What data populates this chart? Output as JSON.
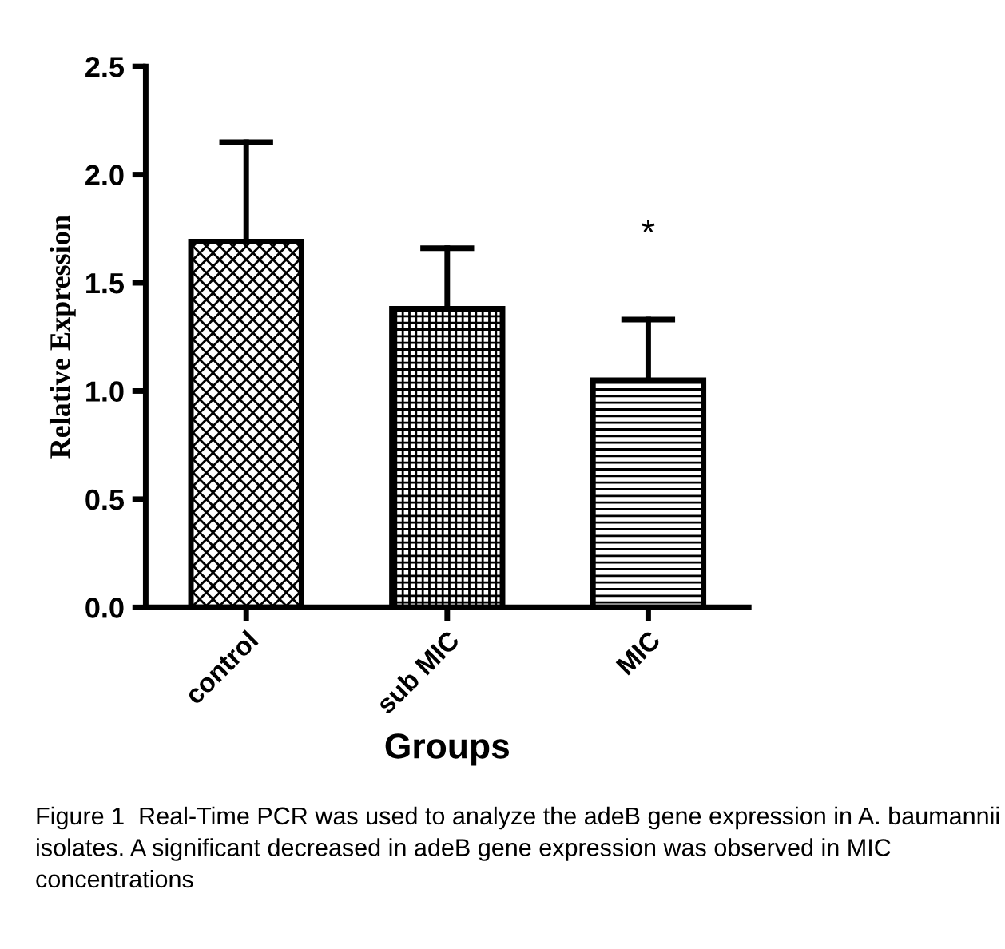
{
  "chart_data": {
    "type": "bar",
    "xlabel": "Groups",
    "ylabel": "Relative Expression",
    "categories": [
      "control",
      "sub MIC",
      "MIC"
    ],
    "values": [
      1.69,
      1.38,
      1.05
    ],
    "errors": [
      [
        1.69,
        2.15
      ],
      [
        1.38,
        1.66
      ],
      [
        1.05,
        1.33
      ]
    ],
    "colors": [
      "#000000",
      "#000000",
      "#000000"
    ],
    "ylim": [
      0,
      2.5
    ],
    "yticks": [
      {
        "value": 0,
        "label": "0.0"
      },
      {
        "value": 0.5,
        "label": "0.5"
      },
      {
        "value": 1,
        "label": "1.0"
      },
      {
        "value": 1.5,
        "label": "1.5"
      },
      {
        "value": 2,
        "label": "2.0"
      },
      {
        "value": 2.5,
        "label": "2.5"
      }
    ],
    "grid": false,
    "legend": false,
    "annotations": [
      "*",
      "Figure 1  Real-Time PCR was used to analyze the adeB gene expression in A. baumannii isolates. A significant decreased in adeB gene expression was observed in MIC concentrations"
    ]
  }
}
